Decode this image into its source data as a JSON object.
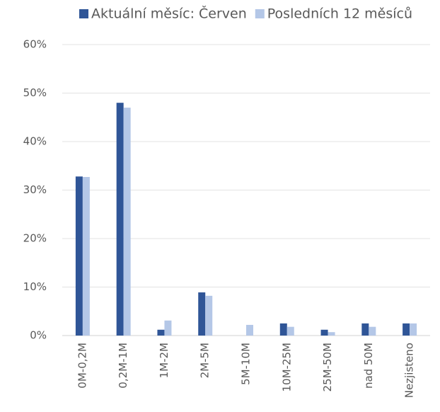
{
  "chart_data": {
    "type": "bar",
    "categories": [
      "0M-0,2M",
      "0,2M-1M",
      "1M-2M",
      "2M-5M",
      "5M-10M",
      "10M-25M",
      "25M-50M",
      "nad 50M",
      "Nezjisteno"
    ],
    "series": [
      {
        "name": "Aktuální měsíc: Červen",
        "color": "#2f5597",
        "values": [
          32.8,
          48.0,
          1.2,
          8.9,
          0,
          2.5,
          1.2,
          2.5,
          2.5
        ]
      },
      {
        "name": "Posledních 12 měsíců",
        "color": "#b4c7e7",
        "values": [
          32.7,
          47.0,
          3.1,
          8.2,
          2.2,
          1.8,
          0.7,
          1.8,
          2.5
        ]
      }
    ],
    "ylim": [
      0,
      60
    ],
    "yticks": [
      {
        "value": 0,
        "label": "0%"
      },
      {
        "value": 10,
        "label": "10%"
      },
      {
        "value": 20,
        "label": "20%"
      },
      {
        "value": 30,
        "label": "30%"
      },
      {
        "value": 40,
        "label": "40%"
      },
      {
        "value": 50,
        "label": "50%"
      },
      {
        "value": 60,
        "label": "60%"
      }
    ],
    "grid": true,
    "legend": "top"
  }
}
